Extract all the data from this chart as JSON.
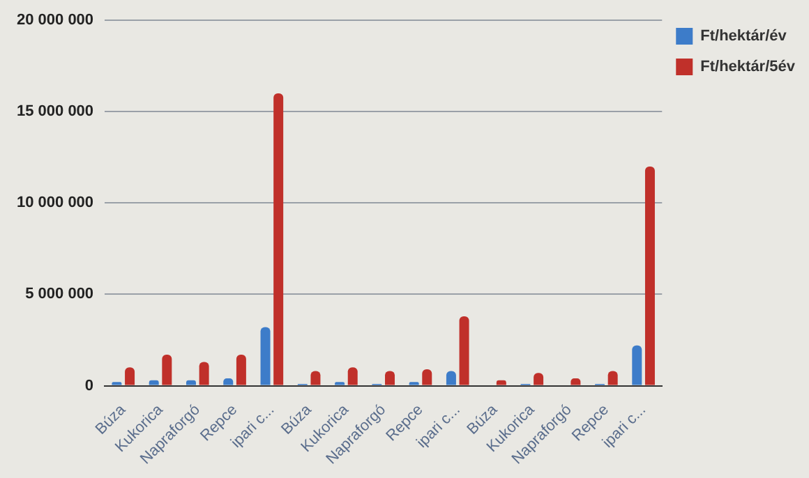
{
  "chart_data": {
    "type": "bar",
    "categories": [
      "Búza",
      "Kukorica",
      "Napraforgó",
      "Repce",
      "ipari c...",
      "Búza",
      "Kukorica",
      "Napraforgó",
      "Repce",
      "ipari c...",
      "Búza",
      "Kukorica",
      "Napraforgó",
      "Repce",
      "ipari c..."
    ],
    "series": [
      {
        "name": "Ft/hektár/év",
        "color": "#3d7cc9",
        "values": [
          200000,
          300000,
          300000,
          400000,
          3200000,
          100000,
          200000,
          100000,
          200000,
          800000,
          null,
          100000,
          null,
          100000,
          2200000
        ]
      },
      {
        "name": "Ft/hektár/5év",
        "color": "#c0302a",
        "values": [
          1000000,
          1700000,
          1300000,
          1700000,
          16000000,
          800000,
          1000000,
          800000,
          900000,
          3800000,
          300000,
          700000,
          400000,
          800000,
          12000000
        ]
      }
    ],
    "ylim": [
      0,
      20000000
    ],
    "yticks": [
      {
        "value": 0,
        "label": "0"
      },
      {
        "value": 5000000,
        "label": "5 000 000"
      },
      {
        "value": 10000000,
        "label": "10 000 000"
      },
      {
        "value": 15000000,
        "label": "15 000 000"
      },
      {
        "value": 20000000,
        "label": "20 000 000"
      }
    ],
    "grid": "y",
    "legend": "top right"
  }
}
